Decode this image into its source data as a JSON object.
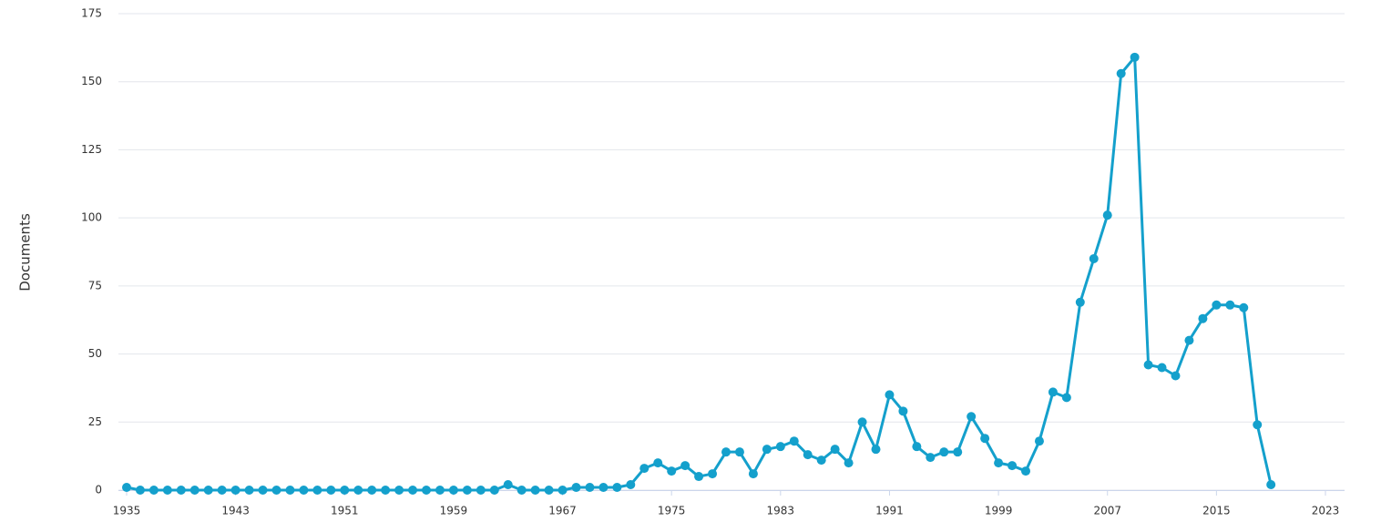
{
  "chart_data": {
    "type": "line",
    "y_label": "Documents",
    "x": [
      1935,
      1936,
      1937,
      1938,
      1939,
      1940,
      1941,
      1942,
      1943,
      1944,
      1945,
      1946,
      1947,
      1948,
      1949,
      1950,
      1951,
      1952,
      1953,
      1954,
      1955,
      1956,
      1957,
      1958,
      1959,
      1960,
      1961,
      1962,
      1963,
      1964,
      1965,
      1966,
      1967,
      1968,
      1969,
      1970,
      1971,
      1972,
      1973,
      1974,
      1975,
      1976,
      1977,
      1978,
      1979,
      1980,
      1981,
      1982,
      1983,
      1984,
      1985,
      1986,
      1987,
      1988,
      1989,
      1990,
      1991,
      1992,
      1993,
      1994,
      1995,
      1996,
      1997,
      1998,
      1999,
      2000,
      2001,
      2002,
      2003,
      2004,
      2005,
      2006,
      2007,
      2008,
      2009,
      2010,
      2011,
      2012,
      2013,
      2014,
      2015,
      2016,
      2017,
      2018,
      2019
    ],
    "series": [
      {
        "name": "Documents",
        "color": "#14a0cc",
        "values": [
          1,
          0,
          0,
          0,
          0,
          0,
          0,
          0,
          0,
          0,
          0,
          0,
          0,
          0,
          0,
          0,
          0,
          0,
          0,
          0,
          0,
          0,
          0,
          0,
          0,
          0,
          0,
          0,
          2,
          0,
          0,
          0,
          0,
          1,
          1,
          1,
          1,
          2,
          8,
          10,
          7,
          9,
          5,
          6,
          14,
          14,
          6,
          15,
          16,
          18,
          13,
          11,
          15,
          10,
          25,
          15,
          35,
          29,
          16,
          12,
          14,
          14,
          27,
          19,
          10,
          9,
          7,
          18,
          36,
          34,
          69,
          85,
          101,
          153,
          159,
          46,
          45,
          42,
          55,
          63,
          68,
          68,
          67,
          24,
          2
        ]
      }
    ],
    "xlim": [
      1935,
      2023
    ],
    "xticks": [
      1935,
      1943,
      1951,
      1959,
      1967,
      1975,
      1983,
      1991,
      1999,
      2007,
      2015,
      2023
    ],
    "ylim": [
      0,
      175
    ],
    "yticks": [
      0,
      25,
      50,
      75,
      100,
      125,
      150,
      175
    ],
    "grid": true
  }
}
